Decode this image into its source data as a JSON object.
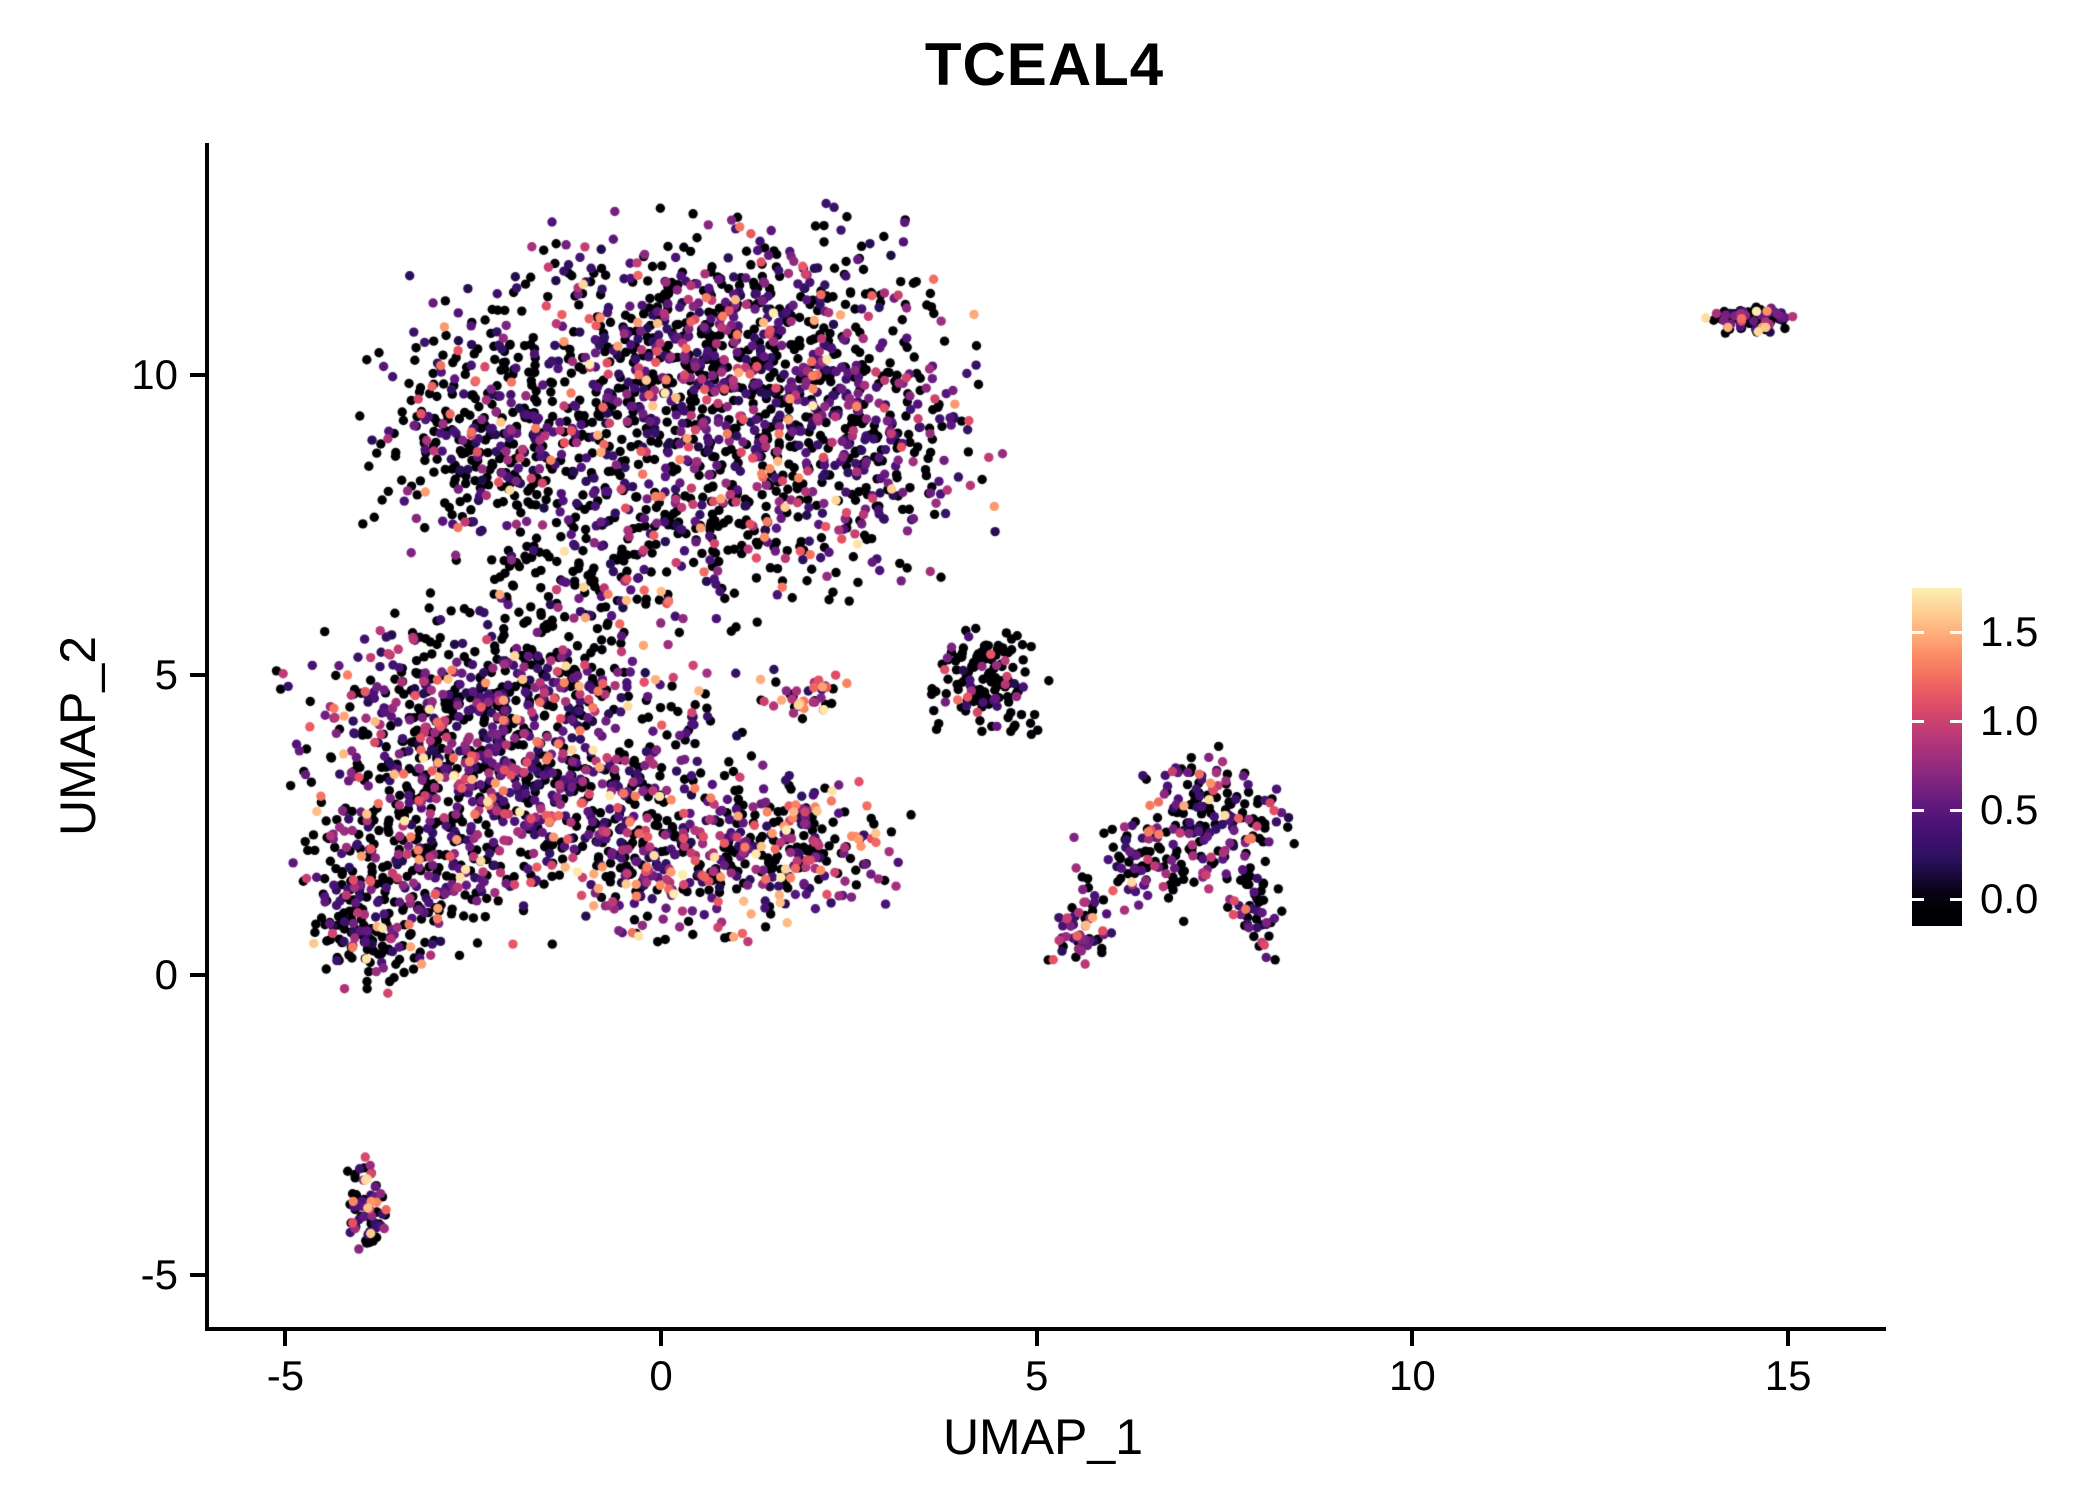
{
  "title": "TCEAL4",
  "colors": {
    "background": "#ffffff",
    "axis": "#000000",
    "text": "#000000"
  },
  "chart_data": {
    "type": "scatter",
    "title": "TCEAL4",
    "xlabel": "UMAP_1",
    "ylabel": "UMAP_2",
    "xlim": [
      -6.07,
      16.25
    ],
    "ylim": [
      -5.87,
      13.87
    ],
    "x_ticks": [
      -5,
      0,
      5,
      10,
      15
    ],
    "y_ticks": [
      10,
      5,
      0,
      -5
    ],
    "grid": false,
    "legend_position": "right",
    "colorbar_max": 1.8,
    "point_radius_px": 4.7,
    "seed": 7,
    "colormap": "magma",
    "colormap_stops": [
      [
        0,
        "#000004"
      ],
      [
        0.125,
        "#2c115f"
      ],
      [
        0.25,
        "#50127b"
      ],
      [
        0.375,
        "#822681"
      ],
      [
        0.5,
        "#b63679"
      ],
      [
        0.625,
        "#e65164"
      ],
      [
        0.75,
        "#fb8761"
      ],
      [
        0.875,
        "#fec48a"
      ],
      [
        1,
        "#fcfdbf"
      ]
    ],
    "legend": {
      "bar_range": [
        -0.15,
        1.75
      ],
      "ticks": [
        {
          "value": 1.5,
          "label": "1.5"
        },
        {
          "value": 1.0,
          "label": "1.0"
        },
        {
          "value": 0.5,
          "label": "0.5"
        },
        {
          "value": 0.0,
          "label": "0.0"
        }
      ]
    },
    "expr_bins": [
      [
        0,
        0
      ],
      [
        0.15,
        0.55
      ],
      [
        0.55,
        0.95
      ],
      [
        0.95,
        1.35
      ],
      [
        1.35,
        1.75
      ]
    ],
    "clusters": [
      {
        "name": "top-blob-upper",
        "cx": 0.9,
        "cy": 11.2,
        "sx": 1.25,
        "sy": 0.75,
        "n": 380,
        "expr_weights": [
          0.52,
          0.27,
          0.13,
          0.06,
          0.02
        ]
      },
      {
        "name": "top-blob-core-left",
        "cx": -0.6,
        "cy": 9.6,
        "sx": 1.5,
        "sy": 0.95,
        "n": 520,
        "expr_weights": [
          0.55,
          0.25,
          0.12,
          0.06,
          0.02
        ]
      },
      {
        "name": "top-blob-core-right",
        "cx": 1.7,
        "cy": 9.3,
        "sx": 1.2,
        "sy": 0.95,
        "n": 400,
        "expr_weights": [
          0.5,
          0.26,
          0.14,
          0.07,
          0.03
        ]
      },
      {
        "name": "top-blob-left-arm",
        "cx": -2.4,
        "cy": 8.8,
        "sx": 0.7,
        "sy": 0.85,
        "n": 220,
        "expr_weights": [
          0.55,
          0.27,
          0.12,
          0.05,
          0.01
        ]
      },
      {
        "name": "top-blob-lower",
        "cx": 0.4,
        "cy": 7.4,
        "sx": 1.3,
        "sy": 0.75,
        "n": 260,
        "expr_weights": [
          0.6,
          0.22,
          0.11,
          0.05,
          0.02
        ]
      },
      {
        "name": "top-blob-right-edge",
        "cx": 3.0,
        "cy": 8.9,
        "sx": 0.7,
        "sy": 1.0,
        "n": 160,
        "expr_weights": [
          0.5,
          0.25,
          0.15,
          0.07,
          0.03
        ]
      },
      {
        "name": "bridge",
        "cx": -1.3,
        "cy": 6.3,
        "sx": 0.8,
        "sy": 0.6,
        "n": 110,
        "expr_weights": [
          0.62,
          0.23,
          0.1,
          0.04,
          0.01
        ]
      },
      {
        "name": "lower-blob-upper-left",
        "cx": -2.6,
        "cy": 4.0,
        "sx": 1.1,
        "sy": 0.85,
        "n": 480,
        "expr_weights": [
          0.4,
          0.28,
          0.18,
          0.1,
          0.04
        ]
      },
      {
        "name": "lower-blob-center",
        "cx": -0.9,
        "cy": 3.1,
        "sx": 1.25,
        "sy": 0.95,
        "n": 450,
        "expr_weights": [
          0.45,
          0.27,
          0.16,
          0.08,
          0.04
        ]
      },
      {
        "name": "lower-blob-left-lower",
        "cx": -3.3,
        "cy": 1.9,
        "sx": 0.75,
        "sy": 0.85,
        "n": 300,
        "expr_weights": [
          0.45,
          0.27,
          0.16,
          0.08,
          0.04
        ]
      },
      {
        "name": "lower-blob-lower-right",
        "cx": 0.7,
        "cy": 1.9,
        "sx": 1.15,
        "sy": 0.65,
        "n": 320,
        "expr_weights": [
          0.35,
          0.25,
          0.2,
          0.13,
          0.07
        ]
      },
      {
        "name": "lower-blob-left-tip",
        "cx": -3.85,
        "cy": 0.8,
        "sx": 0.35,
        "sy": 0.5,
        "n": 130,
        "expr_weights": [
          0.6,
          0.2,
          0.12,
          0.06,
          0.02
        ]
      },
      {
        "name": "lower-blob-right-tip",
        "cx": 2.1,
        "cy": 2.3,
        "sx": 0.45,
        "sy": 0.45,
        "n": 70,
        "expr_weights": [
          0.3,
          0.2,
          0.2,
          0.18,
          0.12
        ]
      },
      {
        "name": "lower-blob-top-edge",
        "cx": -1.8,
        "cy": 5.0,
        "sx": 1.2,
        "sy": 0.5,
        "n": 150,
        "expr_weights": [
          0.5,
          0.27,
          0.13,
          0.07,
          0.03
        ]
      },
      {
        "name": "lower-blob-upper-right",
        "cx": 1.9,
        "cy": 4.7,
        "sx": 0.3,
        "sy": 0.2,
        "n": 40,
        "expr_weights": [
          0.3,
          0.25,
          0.2,
          0.15,
          0.1
        ]
      },
      {
        "name": "mid-right-cluster",
        "cx": 4.3,
        "cy": 4.9,
        "sx": 0.38,
        "sy": 0.45,
        "n": 140,
        "expr_weights": [
          0.78,
          0.12,
          0.06,
          0.03,
          0.01
        ]
      },
      {
        "name": "right-cluster-main",
        "cx": 7.3,
        "cy": 2.6,
        "sx": 0.5,
        "sy": 0.55,
        "n": 190,
        "expr_weights": [
          0.52,
          0.24,
          0.13,
          0.08,
          0.03
        ]
      },
      {
        "name": "right-cluster-mid",
        "cx": 6.4,
        "cy": 1.7,
        "sx": 0.45,
        "sy": 0.4,
        "n": 80,
        "expr_weights": [
          0.55,
          0.25,
          0.12,
          0.06,
          0.02
        ]
      },
      {
        "name": "right-cluster-tail-left",
        "cx": 5.6,
        "cy": 0.75,
        "sx": 0.22,
        "sy": 0.28,
        "n": 55,
        "expr_weights": [
          0.4,
          0.25,
          0.18,
          0.12,
          0.05
        ]
      },
      {
        "name": "right-cluster-tail-right",
        "cx": 7.85,
        "cy": 1.0,
        "sx": 0.18,
        "sy": 0.35,
        "n": 45,
        "expr_weights": [
          0.55,
          0.25,
          0.12,
          0.06,
          0.02
        ]
      },
      {
        "name": "bottom-left-cluster",
        "cx": -3.9,
        "cy": -3.9,
        "sx": 0.14,
        "sy": 0.38,
        "n": 75,
        "expr_weights": [
          0.42,
          0.25,
          0.17,
          0.11,
          0.05
        ]
      },
      {
        "name": "top-right-cluster",
        "cx": 14.5,
        "cy": 10.95,
        "sx": 0.28,
        "sy": 0.11,
        "n": 95,
        "expr_weights": [
          0.48,
          0.22,
          0.15,
          0.1,
          0.05
        ]
      }
    ]
  }
}
